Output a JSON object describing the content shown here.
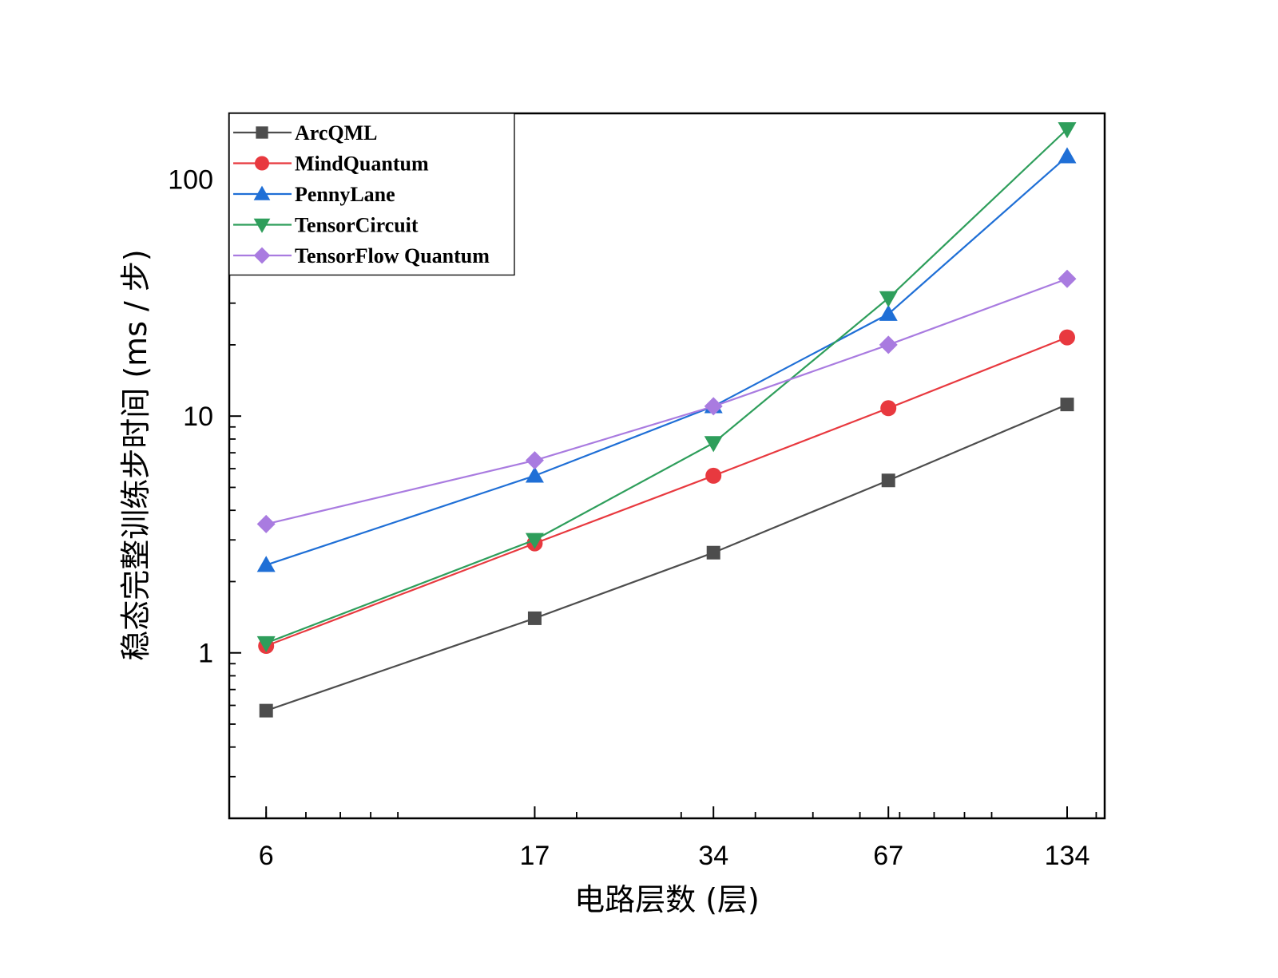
{
  "chart_data": {
    "type": "line",
    "title": "",
    "xlabel": "电路层数 (层)",
    "ylabel": "稳态完整训练步时间 (ms / 步)",
    "x_scale": "log",
    "y_scale": "log",
    "x": [
      6,
      17,
      34,
      67,
      134
    ],
    "x_tick_labels": [
      "6",
      "17",
      "34",
      "67",
      "134"
    ],
    "xlim": [
      5.2,
      155
    ],
    "ylim": [
      0.2,
      190
    ],
    "y_ticks": [
      1,
      10,
      100
    ],
    "y_tick_labels": [
      "1",
      "10",
      "100"
    ],
    "grid": false,
    "legend_position": "top-left",
    "series": [
      {
        "name": "ArcQML",
        "color": "#4d4d4d",
        "marker": "square",
        "values": [
          0.57,
          1.4,
          2.65,
          5.35,
          11.2
        ]
      },
      {
        "name": "MindQuantum",
        "color": "#e8393f",
        "marker": "circle",
        "values": [
          1.07,
          2.9,
          5.6,
          10.8,
          21.5
        ]
      },
      {
        "name": "PennyLane",
        "color": "#1f6fd6",
        "marker": "triangle-up",
        "values": [
          2.35,
          5.6,
          11.0,
          27.0,
          125
        ]
      },
      {
        "name": "TensorCircuit",
        "color": "#2e9e5b",
        "marker": "triangle-down",
        "values": [
          1.1,
          3.0,
          7.7,
          31.5,
          163
        ]
      },
      {
        "name": "TensorFlow Quantum",
        "color": "#a97be0",
        "marker": "diamond",
        "values": [
          3.5,
          6.5,
          11.0,
          20.0,
          38.0
        ]
      }
    ]
  }
}
